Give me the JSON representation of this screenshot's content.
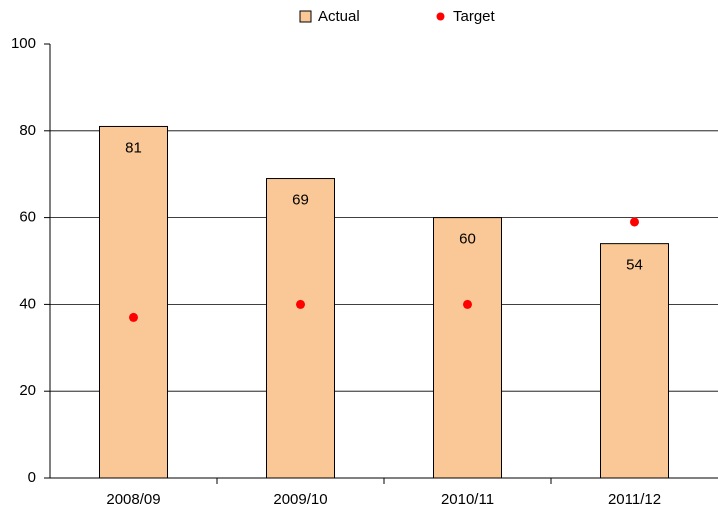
{
  "chart_data": {
    "type": "bar",
    "categories": [
      "2008/09",
      "2009/10",
      "2010/11",
      "2011/12"
    ],
    "series": [
      {
        "name": "Actual",
        "type": "bar",
        "color": "#fac896",
        "values": [
          81,
          69,
          60,
          54
        ],
        "show_values": true
      },
      {
        "name": "Target",
        "type": "scatter",
        "color": "#ff0000",
        "values": [
          37,
          40,
          40,
          59
        ]
      }
    ],
    "ylim": [
      0,
      100
    ],
    "yticks": [
      0,
      20,
      40,
      60,
      80,
      100
    ],
    "grid": true,
    "legend": "top"
  }
}
